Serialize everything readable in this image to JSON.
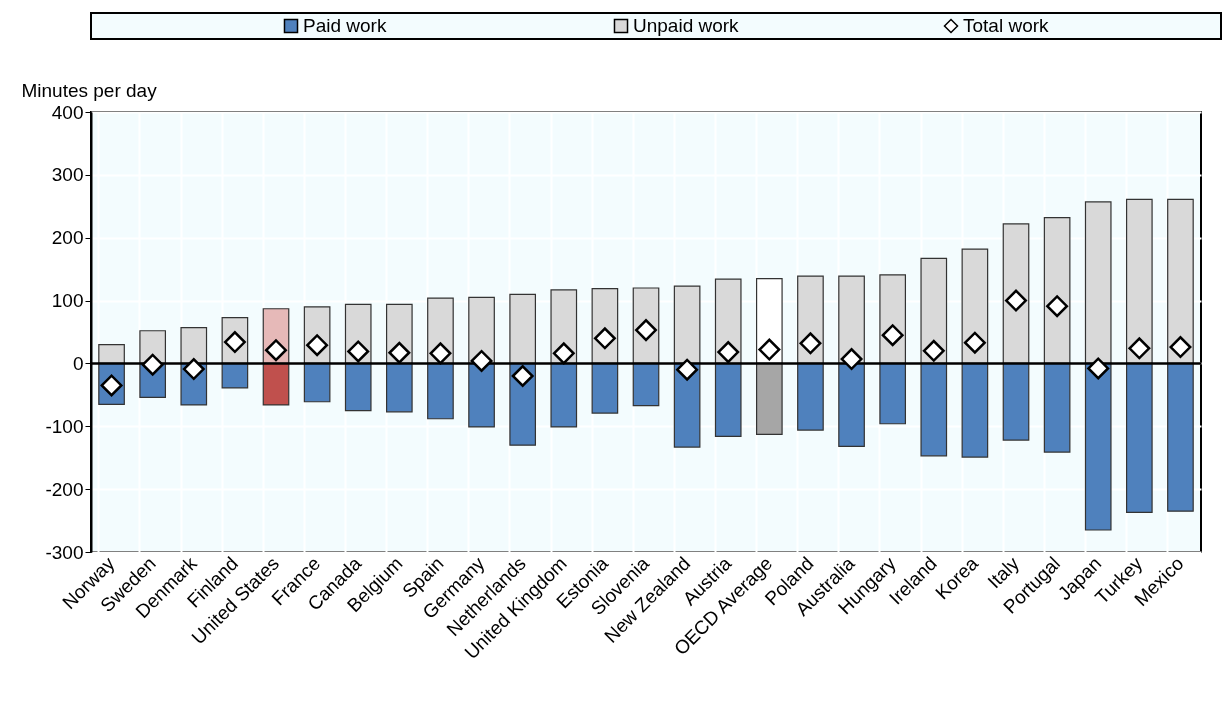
{
  "chart_data": {
    "type": "bar",
    "ylabel": "Minutes per day",
    "categories": [
      "Norway",
      "Sweden",
      "Denmark",
      "Finland",
      "United States",
      "France",
      "Canada",
      "Belgium",
      "Spain",
      "Germany",
      "Netherlands",
      "United Kingdom",
      "Estonia",
      "Slovenia",
      "New Zealand",
      "Austria",
      "OECD Average",
      "Poland",
      "Australia",
      "Hungary",
      "Ireland",
      "Korea",
      "Italy",
      "Portugal",
      "Japan",
      "Turkey",
      "Mexico"
    ],
    "series": [
      {
        "name": "Paid work",
        "color": "#4f81bd",
        "values": [
          -65,
          -54,
          -66,
          -39,
          -66,
          -61,
          -75,
          -77,
          -88,
          -101,
          -130,
          -101,
          -79,
          -67,
          -133,
          -116,
          -113,
          -106,
          -132,
          -96,
          -147,
          -149,
          -122,
          -141,
          -265,
          -237,
          -235
        ],
        "colors": [
          "#4f81bd",
          "#4f81bd",
          "#4f81bd",
          "#4f81bd",
          "#c0504d",
          "#4f81bd",
          "#4f81bd",
          "#4f81bd",
          "#4f81bd",
          "#4f81bd",
          "#4f81bd",
          "#4f81bd",
          "#4f81bd",
          "#4f81bd",
          "#4f81bd",
          "#4f81bd",
          "#a6a6a6",
          "#4f81bd",
          "#4f81bd",
          "#4f81bd",
          "#4f81bd",
          "#4f81bd",
          "#4f81bd",
          "#4f81bd",
          "#4f81bd",
          "#4f81bd",
          "#4f81bd"
        ]
      },
      {
        "name": "Unpaid work",
        "color": "#d9d9d9",
        "values": [
          30,
          52,
          57,
          73,
          87,
          90,
          94,
          94,
          104,
          105,
          110,
          117,
          119,
          120,
          123,
          134,
          135,
          139,
          139,
          141,
          167,
          182,
          222,
          232,
          257,
          261,
          261
        ],
        "colors": [
          "#d9d9d9",
          "#d9d9d9",
          "#d9d9d9",
          "#d9d9d9",
          "#e6b9b8",
          "#d9d9d9",
          "#d9d9d9",
          "#d9d9d9",
          "#d9d9d9",
          "#d9d9d9",
          "#d9d9d9",
          "#d9d9d9",
          "#d9d9d9",
          "#d9d9d9",
          "#d9d9d9",
          "#d9d9d9",
          "#ffffff",
          "#d9d9d9",
          "#d9d9d9",
          "#d9d9d9",
          "#d9d9d9",
          "#d9d9d9",
          "#d9d9d9",
          "#d9d9d9",
          "#d9d9d9",
          "#d9d9d9",
          "#d9d9d9"
        ]
      },
      {
        "name": "Total work",
        "type": "scatter",
        "color": "#ffffff",
        "values": [
          -35,
          -2,
          -9,
          34,
          21,
          29,
          19,
          17,
          16,
          4,
          -20,
          16,
          40,
          53,
          -10,
          18,
          22,
          32,
          7,
          45,
          20,
          33,
          100,
          91,
          -8,
          24,
          26
        ]
      }
    ],
    "ylim": [
      -300,
      400
    ],
    "yticks": [
      -300,
      -200,
      -100,
      0,
      100,
      200,
      300,
      400
    ],
    "stacked": true,
    "grid": true,
    "legend": "top",
    "marker": "diamond",
    "ref_lines": [
      {
        "axis": "y",
        "value": 0,
        "color": "#000000"
      }
    ]
  }
}
